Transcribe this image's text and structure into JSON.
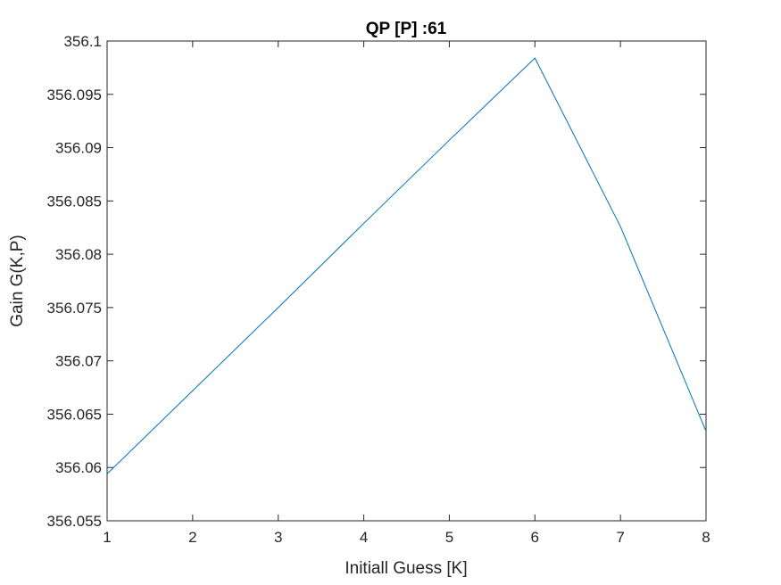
{
  "chart_data": {
    "type": "line",
    "title": "QP [P] :61",
    "xlabel": "Initiall Guess [K]",
    "ylabel": "Gain G(K,P)",
    "xlim": [
      1,
      8
    ],
    "ylim": [
      356.055,
      356.1
    ],
    "xticks": [
      1,
      2,
      3,
      4,
      5,
      6,
      7,
      8
    ],
    "yticks": [
      356.055,
      356.06,
      356.065,
      356.07,
      356.075,
      356.08,
      356.085,
      356.09,
      356.095,
      356.1
    ],
    "ytick_labels": [
      "356.055",
      "356.06",
      "356.065",
      "356.07",
      "356.075",
      "356.08",
      "356.085",
      "356.09",
      "356.095",
      "356.1"
    ],
    "grid": false,
    "line_color": "#0072BD",
    "series": [
      {
        "x": [
          1,
          2,
          3,
          4,
          5,
          6,
          7,
          8
        ],
        "y": [
          356.0594,
          356.0672,
          356.075,
          356.0829,
          356.0907,
          356.0984,
          356.0826,
          356.0634
        ]
      }
    ]
  }
}
